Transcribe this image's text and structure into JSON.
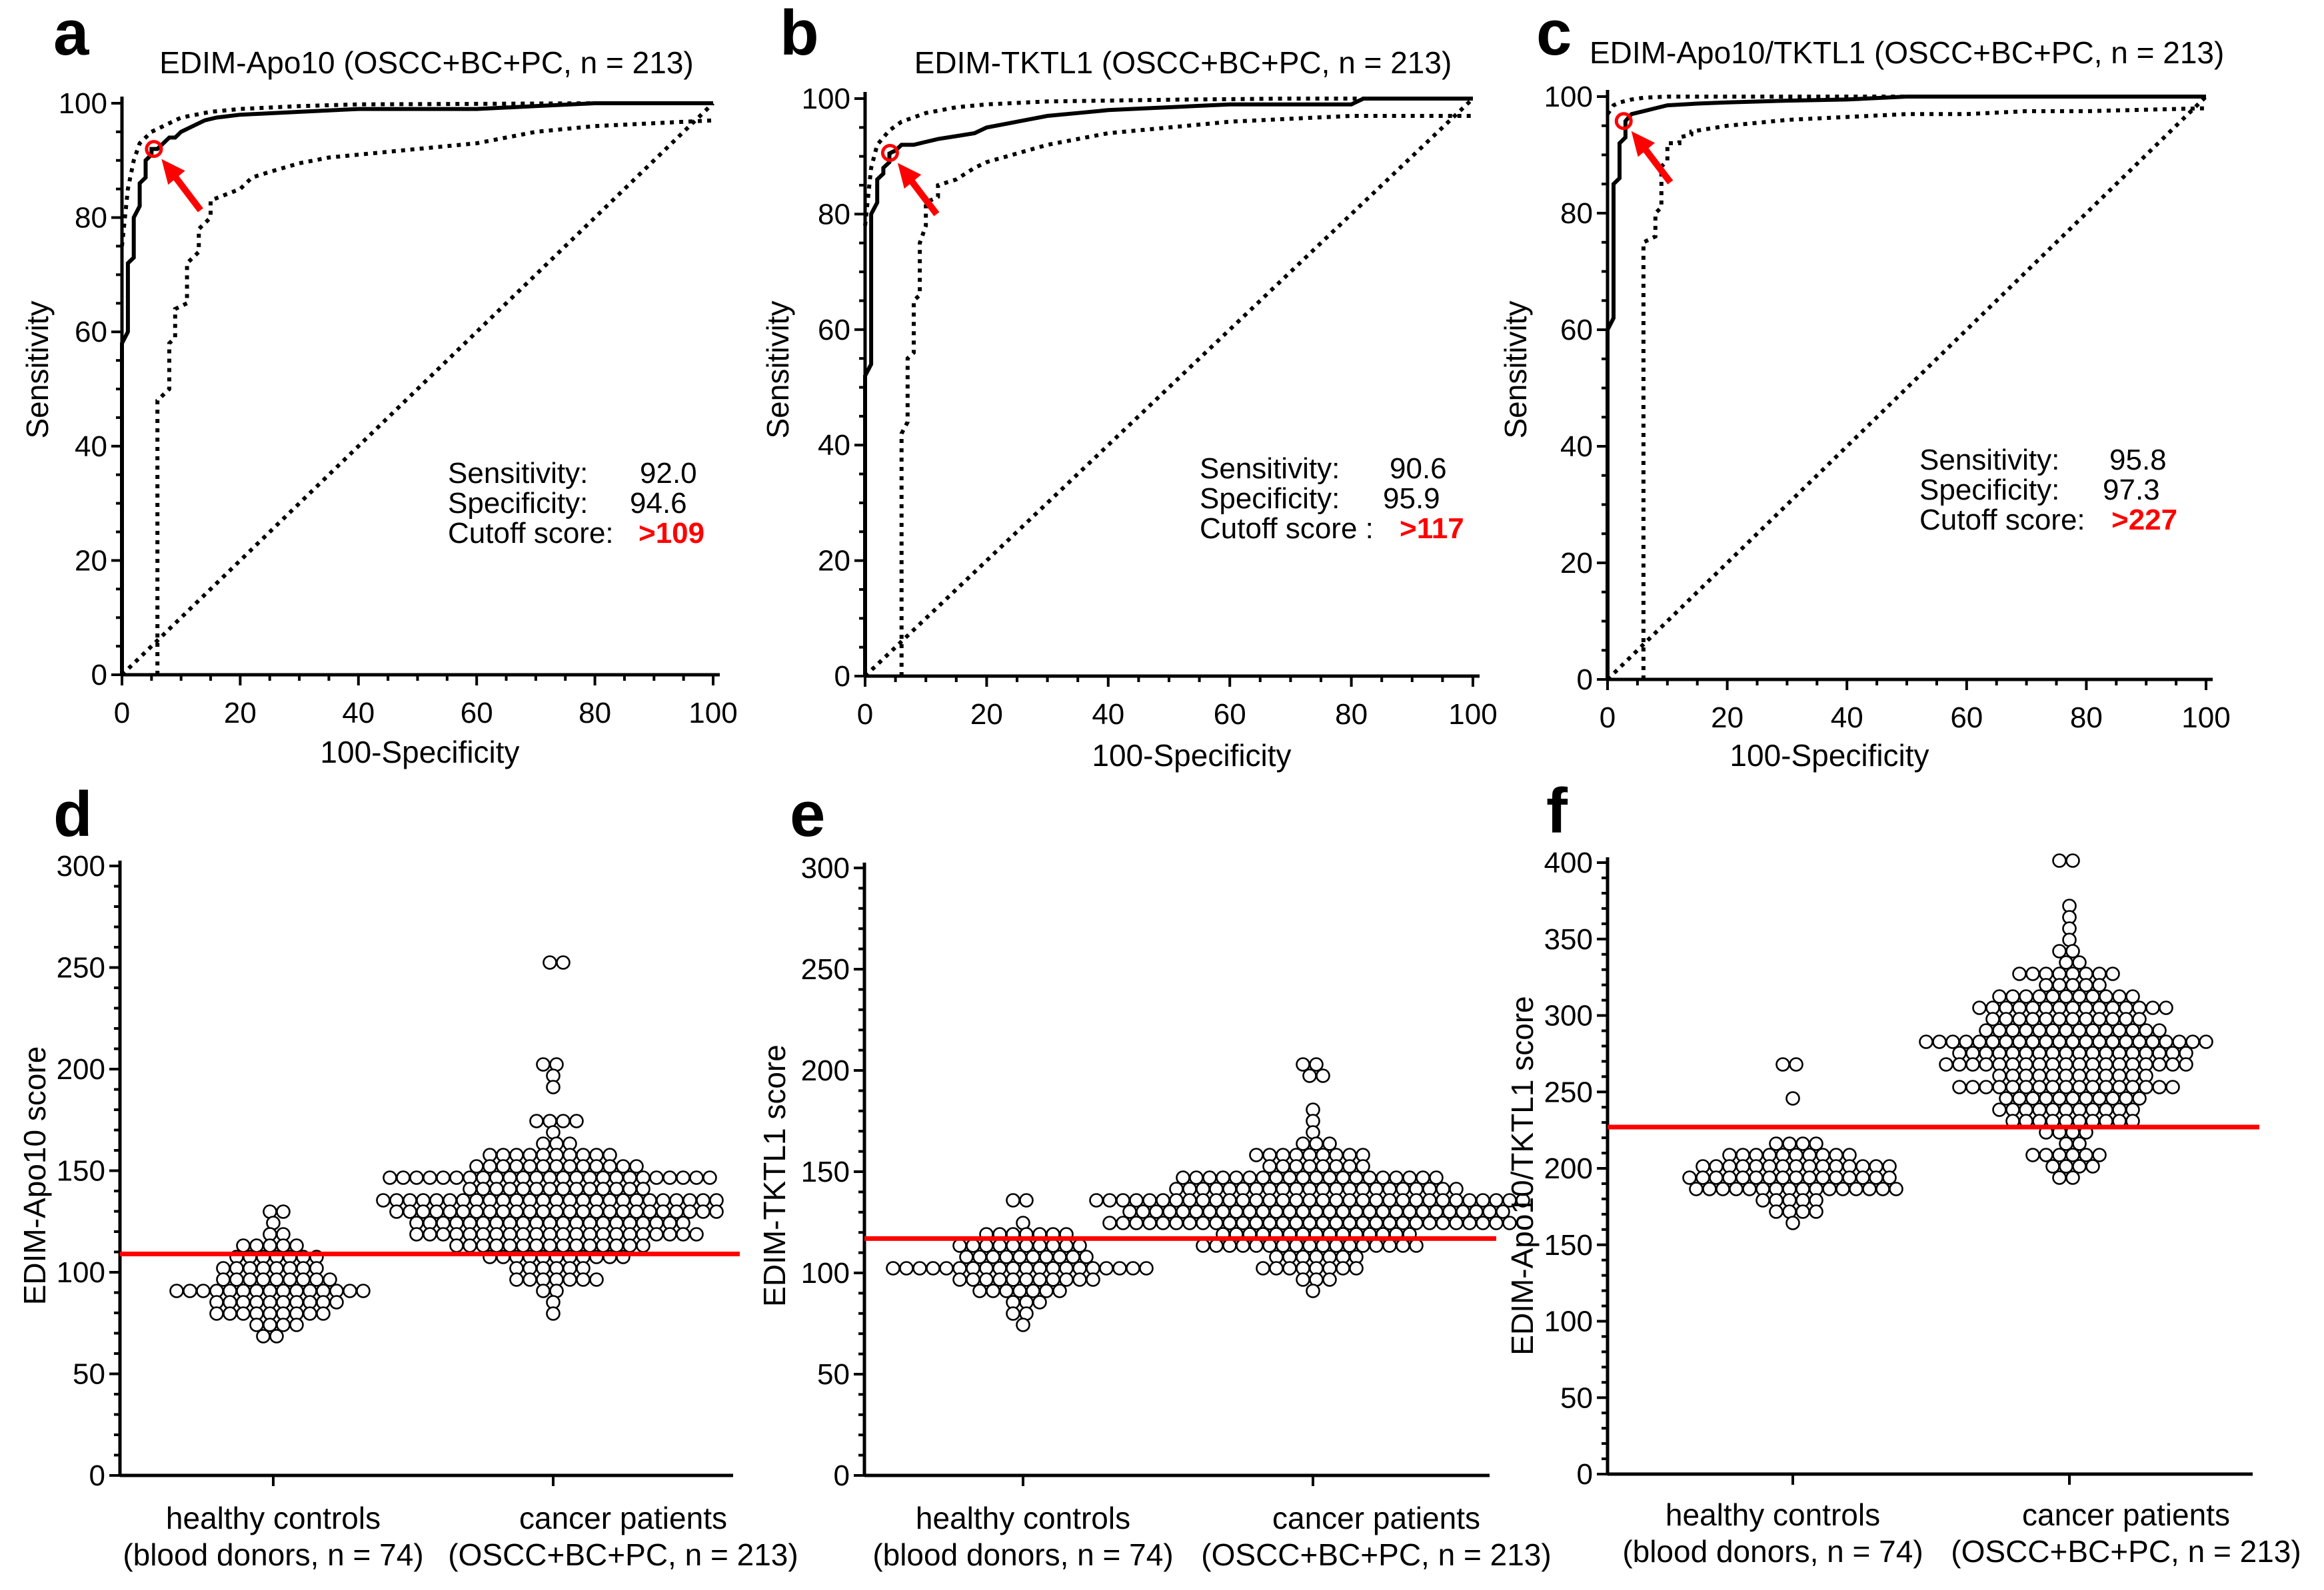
{
  "figure": {
    "panels": [
      "a",
      "b",
      "c",
      "d",
      "e",
      "f"
    ]
  },
  "roc_common": {
    "xlabel": "100-Specificity",
    "ylabel": "Sensitivity",
    "ticks": [
      "0",
      "20",
      "40",
      "60",
      "80",
      "100"
    ],
    "sens_label": "Sensitivity:",
    "spec_label": "Specificity:"
  },
  "dot_common": {
    "cat1_line1": "healthy controls",
    "cat1_line2": "(blood donors, n = 74)",
    "cat2_line1": "cancer patients",
    "cat2_line2": "(OSCC+BC+PC, n = 213)"
  },
  "chart_data": [
    {
      "panel": "a",
      "type": "line",
      "title": "EDIM-Apo10 (OSCC+BC+PC, n = 213)",
      "xlabel": "100-Specificity",
      "ylabel": "Sensitivity",
      "xlim": [
        0,
        100
      ],
      "ylim": [
        0,
        100
      ],
      "sensitivity": "92.0",
      "specificity": "94.6",
      "cutoff_label": "Cutoff score:",
      "cutoff": ">109",
      "optimal_point": [
        5.4,
        92.0
      ],
      "series": [
        {
          "name": "ROC",
          "x": [
            0,
            0,
            1,
            1,
            2,
            2,
            3,
            3,
            4,
            4,
            5,
            5,
            6,
            7,
            8,
            9,
            10,
            12,
            14,
            16,
            20,
            30,
            40,
            50,
            60,
            70,
            80,
            100
          ],
          "y": [
            0,
            58,
            60,
            72,
            73,
            80,
            82,
            86,
            87,
            90,
            91,
            92,
            92,
            93,
            94,
            94,
            95,
            96,
            97,
            97.5,
            98,
            98.5,
            99,
            99,
            99,
            99.5,
            100,
            100
          ]
        },
        {
          "name": "CI upper",
          "x": [
            0,
            1,
            2,
            3,
            5,
            8,
            10,
            15,
            20,
            30,
            40,
            60,
            80,
            100
          ],
          "y": [
            75,
            85,
            90,
            93,
            95,
            96.5,
            97.5,
            98.5,
            99,
            99.5,
            99.8,
            99.9,
            100,
            100
          ]
        },
        {
          "name": "CI lower",
          "x": [
            6,
            6,
            8,
            8,
            9,
            9,
            11,
            11,
            13,
            13,
            15,
            15,
            20,
            22,
            25,
            30,
            35,
            40,
            50,
            60,
            70,
            80,
            100
          ],
          "y": [
            0,
            48,
            50,
            58,
            59,
            64,
            65,
            72,
            74,
            78,
            80,
            83,
            85,
            87,
            88,
            89.5,
            90.5,
            91,
            92,
            93,
            95,
            96,
            97
          ]
        },
        {
          "name": "Reference",
          "x": [
            0,
            100
          ],
          "y": [
            0,
            100
          ]
        }
      ]
    },
    {
      "panel": "b",
      "type": "line",
      "title": "EDIM-TKTL1 (OSCC+BC+PC, n = 213)",
      "xlabel": "100-Specificity",
      "ylabel": "Sensitivity",
      "xlim": [
        0,
        100
      ],
      "ylim": [
        0,
        100
      ],
      "sensitivity": "90.6",
      "specificity": "95.9",
      "cutoff_label": "Cutoff score :",
      "cutoff": ">117",
      "optimal_point": [
        4.1,
        90.6
      ],
      "series": [
        {
          "name": "ROC",
          "x": [
            0,
            0,
            1,
            1,
            2,
            2,
            3,
            3,
            4,
            4,
            5,
            6,
            8,
            10,
            12,
            15,
            18,
            20,
            25,
            30,
            35,
            40,
            50,
            60,
            80,
            82,
            100
          ],
          "y": [
            0,
            52,
            54,
            80,
            82,
            86,
            87,
            88,
            89,
            90.5,
            91,
            92,
            92,
            92.5,
            93,
            93.5,
            94,
            95,
            96,
            97,
            97.5,
            98,
            98.5,
            99,
            99,
            100,
            100
          ]
        },
        {
          "name": "CI upper",
          "x": [
            0,
            1,
            2,
            4,
            6,
            10,
            15,
            20,
            30,
            50,
            70,
            100
          ],
          "y": [
            78,
            88,
            92,
            94.5,
            96,
            97.5,
            98.5,
            99,
            99.5,
            99.8,
            100,
            100
          ]
        },
        {
          "name": "CI lower",
          "x": [
            6,
            6,
            7,
            7,
            8,
            8,
            9,
            9,
            10,
            10,
            12,
            12,
            15,
            18,
            20,
            25,
            30,
            35,
            40,
            50,
            60,
            70,
            80,
            90,
            100
          ],
          "y": [
            0,
            42,
            44,
            55,
            56,
            65,
            66,
            75,
            78,
            82,
            83,
            85,
            86,
            88,
            89,
            90.5,
            92,
            93,
            94,
            95,
            96,
            96.5,
            97,
            97,
            97
          ]
        },
        {
          "name": "Reference",
          "x": [
            0,
            100
          ],
          "y": [
            0,
            100
          ]
        }
      ]
    },
    {
      "panel": "c",
      "type": "line",
      "title": "EDIM-Apo10/TKTL1 (OSCC+BC+PC, n = 213)",
      "xlabel": "100-Specificity",
      "ylabel": "Sensitivity",
      "xlim": [
        0,
        100
      ],
      "ylim": [
        0,
        100
      ],
      "sensitivity": "95.8",
      "specificity": "97.3",
      "cutoff_label": "Cutoff score:",
      "cutoff": ">227",
      "optimal_point": [
        2.7,
        95.8
      ],
      "series": [
        {
          "name": "ROC",
          "x": [
            0,
            0,
            1,
            1,
            2,
            2,
            3,
            3,
            4,
            6,
            8,
            10,
            15,
            20,
            30,
            40,
            50,
            60,
            80,
            100
          ],
          "y": [
            0,
            60,
            62,
            85,
            86,
            92,
            93,
            95.8,
            97,
            97.5,
            98,
            98.5,
            98.8,
            99,
            99.3,
            99.5,
            100,
            100,
            100,
            100
          ]
        },
        {
          "name": "CI upper",
          "x": [
            0,
            1,
            2,
            4,
            6,
            10,
            20,
            40,
            100
          ],
          "y": [
            97,
            98.5,
            99,
            99.5,
            99.8,
            100,
            100,
            100,
            100
          ]
        },
        {
          "name": "CI lower",
          "x": [
            6,
            6,
            8,
            8,
            9,
            9,
            10,
            10,
            12,
            12,
            14,
            14,
            20,
            30,
            40,
            50,
            60,
            70,
            80,
            100
          ],
          "y": [
            0,
            75,
            76,
            80,
            81,
            88,
            89,
            92,
            92,
            93,
            93.5,
            94,
            95,
            96,
            96.5,
            97,
            97,
            97.5,
            97.5,
            98
          ]
        },
        {
          "name": "Reference",
          "x": [
            0,
            100
          ],
          "y": [
            0,
            100
          ]
        }
      ]
    },
    {
      "panel": "d",
      "type": "scatter",
      "ylabel": "EDIM-Apo10 score",
      "categories": [
        "healthy controls (blood donors, n = 74)",
        "cancer patients (OSCC+BC+PC, n = 213)"
      ],
      "ylim": [
        0,
        300
      ],
      "yticks": [
        "0",
        "50",
        "100",
        "150",
        "200",
        "250",
        "300"
      ],
      "cutoff": 109,
      "groups": [
        {
          "name": "healthy controls",
          "n": 74,
          "min": 68,
          "max": 132,
          "center": 90,
          "spread": 11,
          "highs": [
            132,
            126,
            119
          ]
        },
        {
          "name": "cancer patients",
          "n": 213,
          "min": 80,
          "max": 254,
          "center": 132,
          "spread": 18,
          "highs": [
            254,
            204,
            200,
            196,
            190
          ]
        }
      ]
    },
    {
      "panel": "e",
      "type": "scatter",
      "ylabel": "EDIM-TKTL1 score",
      "categories": [
        "healthy controls (blood donors, n = 74)",
        "cancer patients (OSCC+BC+PC, n = 213)"
      ],
      "ylim": [
        0,
        300
      ],
      "yticks": [
        "0",
        "50",
        "100",
        "150",
        "200",
        "250",
        "300"
      ],
      "cutoff": 117,
      "groups": [
        {
          "name": "healthy controls",
          "n": 74,
          "min": 72,
          "max": 135,
          "center": 102,
          "spread": 10,
          "highs": [
            135
          ]
        },
        {
          "name": "cancer patients",
          "n": 213,
          "min": 91,
          "max": 205,
          "center": 133,
          "spread": 17,
          "highs": [
            205,
            200,
            196
          ]
        }
      ]
    },
    {
      "panel": "f",
      "type": "scatter",
      "ylabel": "EDIM-Apo10/TKTL1 score",
      "categories": [
        "healthy controls (blood donors, n = 74)",
        "cancer patients (OSCC+BC+PC, n = 213)"
      ],
      "ylim": [
        0,
        400
      ],
      "yticks": [
        "0",
        "50",
        "100",
        "150",
        "200",
        "250",
        "300",
        "350",
        "400"
      ],
      "cutoff": 227,
      "groups": [
        {
          "name": "healthy controls",
          "n": 74,
          "min": 165,
          "max": 267,
          "center": 192,
          "spread": 14,
          "highs": [
            267,
            243
          ]
        },
        {
          "name": "cancer patients",
          "n": 213,
          "min": 192,
          "max": 400,
          "center": 275,
          "spread": 32,
          "highs": [
            400,
            372,
            366
          ]
        }
      ]
    }
  ]
}
